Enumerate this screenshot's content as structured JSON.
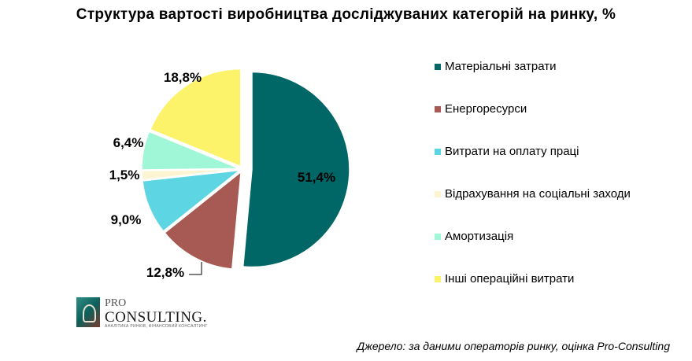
{
  "chart_data": {
    "type": "pie",
    "title": "Структура  вартості виробництва досліджуваних  категорій  на ринку,  %",
    "categories": [
      "Матеріальні затрати",
      "Енергоресурси",
      "Витрати на оплату праці",
      "Відрахування на соціальні заходи",
      "Амортизація",
      "Інші операційні витрати"
    ],
    "values": [
      51.4,
      12.8,
      9.0,
      1.5,
      6.4,
      18.8
    ],
    "data_labels": [
      "51,4%",
      "12,8%",
      "9,0%",
      "1,5%",
      "6,4%",
      "18,8%"
    ],
    "colors": [
      "#006666",
      "#a65a53",
      "#5dd5e3",
      "#fdf5d2",
      "#9ff7d7",
      "#fdf36a"
    ],
    "legend_position": "right",
    "exploded": true
  },
  "source": "Джерело: за даними операторів  ринку, оцінка Pro-Consulting",
  "logo": {
    "pro": "PRO",
    "consulting": "CONSULTING.",
    "tagline": "АНАЛІТИКА РИНКІВ, ФІНАНСОВИЙ КОНСАЛТИНГ"
  }
}
